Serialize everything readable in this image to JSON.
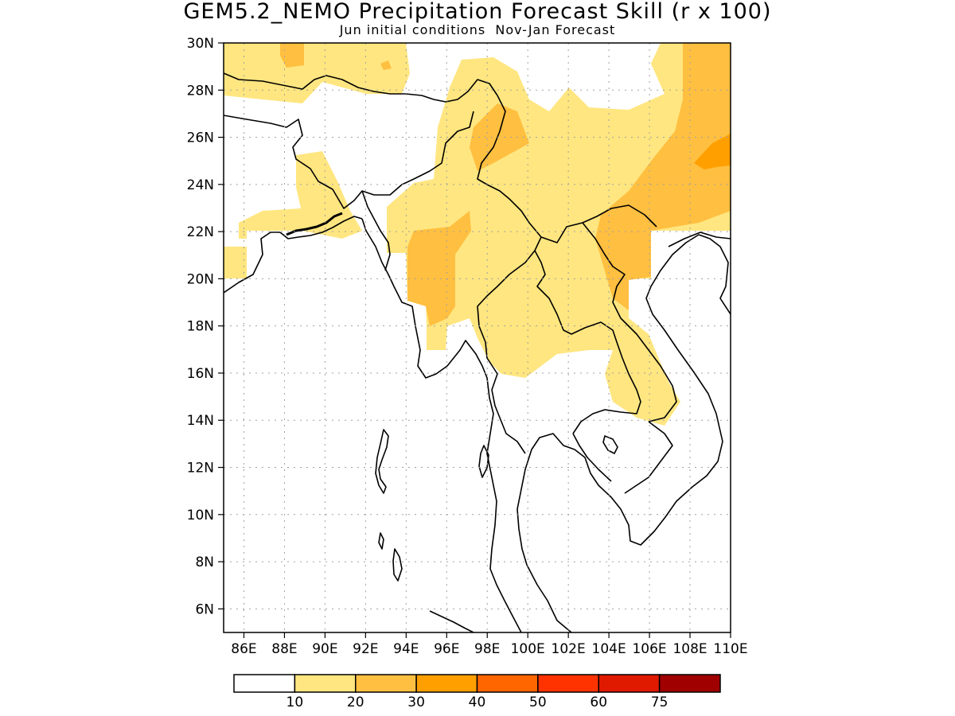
{
  "map": {
    "title": "GEM5.2_NEMO Precipitation Forecast Skill (r x 100)",
    "subtitle": "Jun initial conditions  Nov-Jan Forecast",
    "lon_range": [
      85,
      110
    ],
    "lat_range": [
      5,
      30
    ],
    "lon_ticks": [
      "86E",
      "88E",
      "90E",
      "92E",
      "94E",
      "96E",
      "98E",
      "100E",
      "102E",
      "104E",
      "106E",
      "108E",
      "110E"
    ],
    "lat_ticks": [
      "30N",
      "28N",
      "26N",
      "24N",
      "22N",
      "20N",
      "18N",
      "16N",
      "14N",
      "12N",
      "10N",
      "8N",
      "6N"
    ],
    "gridlines": true
  },
  "colorbar": {
    "colors": [
      "#ffffff",
      "#ffe680",
      "#ffbf40",
      "#ff9f00",
      "#ff6600",
      "#ff3300",
      "#e01a00",
      "#a00000"
    ],
    "labels": [
      "10",
      "20",
      "30",
      "40",
      "50",
      "60",
      "75"
    ]
  },
  "legend_fills": {
    "c1": "#ffe680",
    "c2": "#ffbf40",
    "c3": "#ff9f00"
  }
}
